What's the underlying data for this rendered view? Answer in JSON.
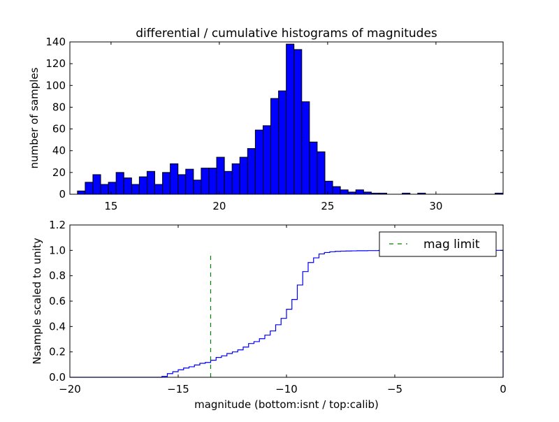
{
  "chart_data": [
    {
      "type": "bar",
      "title": "differential / cumulative histograms of magnitudes",
      "xlabel": "",
      "ylabel": "number of samples",
      "xlim": [
        13.1,
        33.1
      ],
      "ylim": [
        0,
        140
      ],
      "xticks": [
        "15",
        "20",
        "25",
        "30"
      ],
      "xtick_values": [
        15,
        20,
        25,
        30
      ],
      "yticks": [
        "0",
        "20",
        "40",
        "60",
        "80",
        "100",
        "120",
        "140"
      ],
      "ytick_values": [
        0,
        20,
        40,
        60,
        80,
        100,
        120,
        140
      ],
      "bin_start": 13.45,
      "bin_width": 0.357,
      "values": [
        3,
        11,
        18,
        9,
        11,
        20,
        15,
        9,
        16,
        21,
        9,
        20,
        28,
        18,
        23,
        13,
        24,
        24,
        34,
        21,
        28,
        34,
        42,
        59,
        63,
        88,
        95,
        138,
        133,
        85,
        48,
        39,
        12,
        7,
        4,
        2,
        4,
        2,
        1,
        1,
        0,
        0,
        1,
        0,
        1,
        0,
        0,
        0,
        0,
        0,
        0,
        0,
        0,
        0,
        1
      ],
      "color": "#0000ff"
    },
    {
      "type": "line",
      "step": true,
      "xlabel": "magnitude (bottom:isnt / top:calib)",
      "ylabel": "Nsample scaled to unity",
      "xlim": [
        -20,
        0
      ],
      "ylim": [
        0,
        1.2
      ],
      "xticks": [
        "−20",
        "−15",
        "−10",
        "−5",
        "0"
      ],
      "xtick_values": [
        -20,
        -15,
        -10,
        -5,
        0
      ],
      "yticks": [
        "0.0",
        "0.2",
        "0.4",
        "0.6",
        "0.8",
        "1.0",
        "1.2"
      ],
      "ytick_values": [
        0,
        0.2,
        0.4,
        0.6,
        0.8,
        1.0,
        1.2
      ],
      "step_start": -15.75,
      "step_width": 0.25,
      "cumulative": [
        0.007,
        0.029,
        0.044,
        0.059,
        0.073,
        0.083,
        0.097,
        0.11,
        0.117,
        0.134,
        0.156,
        0.169,
        0.187,
        0.2,
        0.216,
        0.238,
        0.266,
        0.281,
        0.304,
        0.332,
        0.365,
        0.414,
        0.464,
        0.536,
        0.613,
        0.727,
        0.833,
        0.904,
        0.941,
        0.972,
        0.983,
        0.989,
        0.992,
        0.994,
        0.995,
        0.996,
        0.997,
        0.997,
        0.998,
        0.998,
        0.999,
        0.999,
        1.0
      ],
      "line_color": "#0000ff",
      "mag_limit": {
        "x": -13.5,
        "y_range": [
          0,
          0.97
        ],
        "color": "#008000",
        "label": "mag limit"
      },
      "legend": "top-right"
    }
  ]
}
